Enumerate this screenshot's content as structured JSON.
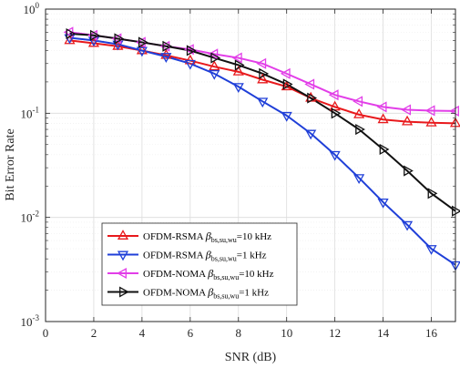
{
  "chart_data": {
    "type": "line",
    "xlabel": "SNR (dB)",
    "ylabel": "Bit Error Rate",
    "x_scale": "linear",
    "y_scale": "log",
    "xlim": [
      0,
      17
    ],
    "ylim": [
      0.001,
      1
    ],
    "x_ticks": [
      0,
      2,
      4,
      6,
      8,
      10,
      12,
      14,
      16
    ],
    "x_tick_labels": [
      "0",
      "2",
      "4",
      "6",
      "8",
      "10",
      "12",
      "14",
      "16"
    ],
    "y_ticks": [
      0.001,
      0.01,
      0.1,
      1
    ],
    "y_tick_labels": [
      {
        "base": "10",
        "exp": "-3"
      },
      {
        "base": "10",
        "exp": "-2"
      },
      {
        "base": "10",
        "exp": "-1"
      },
      {
        "base": "10",
        "exp": "0"
      }
    ],
    "grid": true,
    "legend_position": "bottom-left",
    "x": [
      1,
      2,
      3,
      4,
      5,
      6,
      7,
      8,
      9,
      10,
      11,
      12,
      13,
      14,
      15,
      16,
      17
    ],
    "series": [
      {
        "name": "OFDM-RSMA",
        "name_symbol": "β",
        "name_subscript": "bs,su,wu",
        "name_suffix": "=10 kHz",
        "color": "#e8191c",
        "marker": "triangle-up",
        "values": [
          0.5,
          0.47,
          0.44,
          0.4,
          0.36,
          0.32,
          0.28,
          0.25,
          0.21,
          0.18,
          0.14,
          0.115,
          0.097,
          0.087,
          0.083,
          0.081,
          0.08
        ]
      },
      {
        "name": "OFDM-RSMA",
        "name_symbol": "β",
        "name_subscript": "bs,su,wu",
        "name_suffix": "=1 kHz",
        "color": "#1f3fd8",
        "marker": "triangle-down",
        "values": [
          0.53,
          0.5,
          0.46,
          0.4,
          0.35,
          0.3,
          0.24,
          0.18,
          0.13,
          0.095,
          0.064,
          0.04,
          0.024,
          0.014,
          0.0085,
          0.005,
          0.0035
        ]
      },
      {
        "name": "OFDM-NOMA",
        "name_symbol": "β",
        "name_subscript": "bs,su,wu",
        "name_suffix": "=10 kHz",
        "color": "#e23ee8",
        "marker": "triangle-left",
        "values": [
          0.6,
          0.56,
          0.52,
          0.48,
          0.44,
          0.41,
          0.37,
          0.34,
          0.3,
          0.24,
          0.19,
          0.15,
          0.13,
          0.115,
          0.108,
          0.106,
          0.105
        ]
      },
      {
        "name": "OFDM-NOMA",
        "name_symbol": "β",
        "name_subscript": "bs,su,wu",
        "name_suffix": "=1 kHz",
        "color": "#111111",
        "marker": "triangle-right",
        "values": [
          0.58,
          0.56,
          0.52,
          0.48,
          0.44,
          0.4,
          0.34,
          0.29,
          0.24,
          0.19,
          0.14,
          0.1,
          0.07,
          0.045,
          0.028,
          0.017,
          0.0115
        ]
      }
    ]
  }
}
